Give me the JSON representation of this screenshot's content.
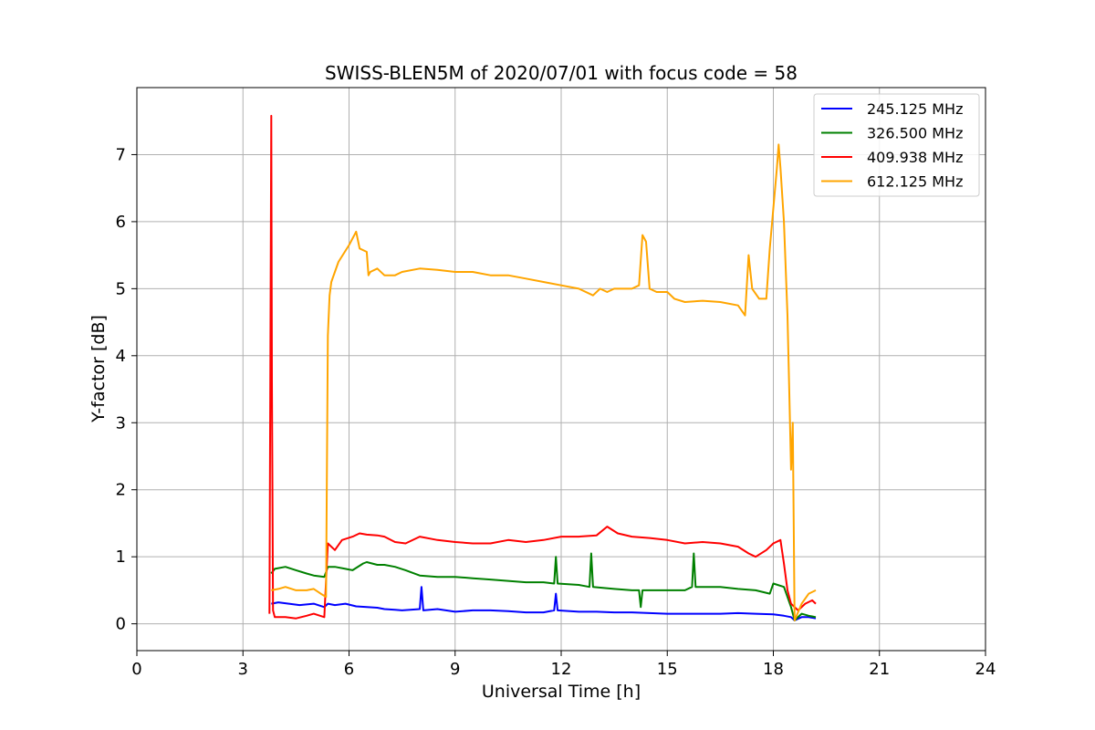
{
  "chart_data": {
    "type": "line",
    "title": "SWISS-BLEN5M of 2020/07/01 with focus code = 58",
    "xlabel": "Universal Time [h]",
    "ylabel": "Y-factor [dB]",
    "xlim": [
      0,
      24
    ],
    "ylim": [
      -0.4,
      8.0
    ],
    "xticks": [
      0,
      3,
      6,
      9,
      12,
      15,
      18,
      21,
      24
    ],
    "yticks": [
      0,
      1,
      2,
      3,
      4,
      5,
      6,
      7
    ],
    "grid": true,
    "legend_position": "top-right",
    "series": [
      {
        "name": "245.125 MHz",
        "color": "#0000ff",
        "x": [
          3.8,
          4.0,
          4.3,
          4.6,
          5.0,
          5.3,
          5.4,
          5.6,
          5.9,
          6.2,
          6.5,
          6.8,
          7.0,
          7.3,
          7.5,
          8.0,
          8.05,
          8.1,
          8.5,
          9.0,
          9.5,
          10.0,
          10.5,
          11.0,
          11.5,
          11.8,
          11.85,
          11.9,
          12.5,
          13.0,
          13.5,
          14.0,
          14.5,
          15.0,
          15.5,
          16.0,
          16.5,
          17.0,
          17.5,
          18.0,
          18.3,
          18.5,
          18.6,
          18.8,
          19.0,
          19.2
        ],
        "y": [
          0.3,
          0.32,
          0.3,
          0.28,
          0.3,
          0.25,
          0.3,
          0.28,
          0.3,
          0.26,
          0.25,
          0.24,
          0.22,
          0.21,
          0.2,
          0.22,
          0.55,
          0.2,
          0.22,
          0.18,
          0.2,
          0.2,
          0.19,
          0.17,
          0.17,
          0.2,
          0.45,
          0.2,
          0.18,
          0.18,
          0.17,
          0.17,
          0.16,
          0.15,
          0.15,
          0.15,
          0.15,
          0.16,
          0.15,
          0.14,
          0.12,
          0.1,
          0.05,
          0.1,
          0.1,
          0.08
        ]
      },
      {
        "name": "326.500 MHz",
        "color": "#008000",
        "x": [
          3.8,
          3.9,
          4.2,
          4.5,
          4.8,
          5.0,
          5.3,
          5.4,
          5.6,
          5.9,
          6.1,
          6.4,
          6.5,
          6.8,
          7.0,
          7.3,
          7.6,
          8.0,
          8.5,
          9.0,
          9.5,
          10.0,
          10.5,
          11.0,
          11.5,
          11.8,
          11.85,
          11.9,
          12.5,
          12.8,
          12.85,
          12.9,
          13.5,
          14.0,
          14.2,
          14.25,
          14.3,
          14.5,
          15.0,
          15.5,
          15.7,
          15.75,
          15.8,
          16.5,
          17.0,
          17.5,
          17.9,
          18.0,
          18.3,
          18.5,
          18.6,
          18.8,
          19.0,
          19.2
        ],
        "y": [
          0.75,
          0.82,
          0.85,
          0.8,
          0.75,
          0.72,
          0.7,
          0.85,
          0.85,
          0.82,
          0.8,
          0.9,
          0.92,
          0.88,
          0.88,
          0.85,
          0.8,
          0.72,
          0.7,
          0.7,
          0.68,
          0.66,
          0.64,
          0.62,
          0.62,
          0.6,
          1.0,
          0.6,
          0.58,
          0.55,
          1.05,
          0.55,
          0.52,
          0.5,
          0.5,
          0.25,
          0.5,
          0.5,
          0.5,
          0.5,
          0.55,
          1.05,
          0.55,
          0.55,
          0.52,
          0.5,
          0.45,
          0.6,
          0.55,
          0.25,
          0.05,
          0.15,
          0.12,
          0.1
        ]
      },
      {
        "name": "409.938 MHz",
        "color": "#ff0000",
        "x": [
          3.75,
          3.8,
          3.82,
          3.85,
          3.9,
          4.2,
          4.5,
          4.8,
          5.0,
          5.3,
          5.4,
          5.6,
          5.8,
          6.1,
          6.3,
          6.5,
          6.8,
          7.0,
          7.3,
          7.6,
          8.0,
          8.5,
          9.0,
          9.5,
          10.0,
          10.5,
          11.0,
          11.5,
          12.0,
          12.5,
          13.0,
          13.3,
          13.6,
          14.0,
          14.5,
          15.0,
          15.5,
          16.0,
          16.5,
          17.0,
          17.3,
          17.5,
          17.8,
          18.0,
          18.2,
          18.3,
          18.4,
          18.5,
          18.7,
          18.9,
          19.1,
          19.2
        ],
        "y": [
          0.15,
          7.58,
          3.6,
          0.2,
          0.1,
          0.1,
          0.08,
          0.12,
          0.15,
          0.1,
          1.2,
          1.1,
          1.25,
          1.3,
          1.35,
          1.33,
          1.32,
          1.3,
          1.22,
          1.2,
          1.3,
          1.25,
          1.22,
          1.2,
          1.2,
          1.25,
          1.22,
          1.25,
          1.3,
          1.3,
          1.32,
          1.45,
          1.35,
          1.3,
          1.28,
          1.25,
          1.2,
          1.22,
          1.2,
          1.15,
          1.05,
          1.0,
          1.1,
          1.2,
          1.25,
          0.9,
          0.5,
          0.3,
          0.2,
          0.3,
          0.35,
          0.3
        ]
      },
      {
        "name": "612.125 MHz",
        "color": "#ffa500",
        "x": [
          3.8,
          4.0,
          4.2,
          4.5,
          4.8,
          5.0,
          5.2,
          5.35,
          5.4,
          5.45,
          5.5,
          5.7,
          6.0,
          6.2,
          6.3,
          6.5,
          6.55,
          6.6,
          6.8,
          7.0,
          7.3,
          7.5,
          8.0,
          8.5,
          9.0,
          9.5,
          10.0,
          10.5,
          11.0,
          11.5,
          12.0,
          12.5,
          12.9,
          13.1,
          13.3,
          13.5,
          14.0,
          14.2,
          14.3,
          14.4,
          14.5,
          14.7,
          15.0,
          15.2,
          15.5,
          16.0,
          16.5,
          17.0,
          17.2,
          17.3,
          17.4,
          17.6,
          17.8,
          17.9,
          18.0,
          18.1,
          18.15,
          18.2,
          18.3,
          18.4,
          18.45,
          18.5,
          18.55,
          18.6,
          18.8,
          19.0,
          19.2
        ],
        "y": [
          0.5,
          0.52,
          0.55,
          0.5,
          0.5,
          0.52,
          0.45,
          0.4,
          4.3,
          4.9,
          5.1,
          5.4,
          5.65,
          5.85,
          5.6,
          5.55,
          5.2,
          5.25,
          5.3,
          5.2,
          5.2,
          5.25,
          5.3,
          5.28,
          5.25,
          5.25,
          5.2,
          5.2,
          5.15,
          5.1,
          5.05,
          5.0,
          4.9,
          5.0,
          4.95,
          5.0,
          5.0,
          5.05,
          5.8,
          5.7,
          5.0,
          4.95,
          4.95,
          4.85,
          4.8,
          4.82,
          4.8,
          4.75,
          4.6,
          5.5,
          5.0,
          4.85,
          4.85,
          5.6,
          6.2,
          6.8,
          7.15,
          6.8,
          6.0,
          4.6,
          3.5,
          2.3,
          3.0,
          0.05,
          0.3,
          0.45,
          0.5
        ]
      }
    ]
  }
}
